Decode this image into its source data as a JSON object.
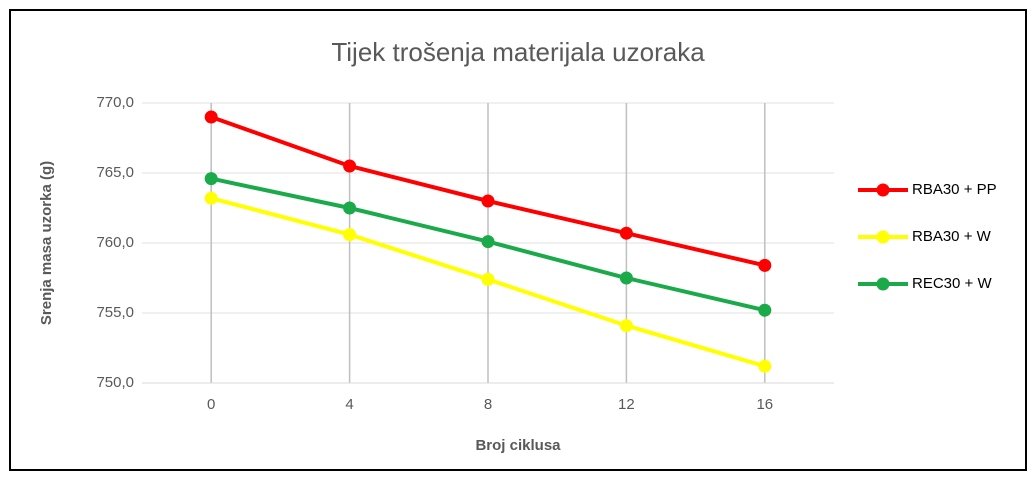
{
  "chart_data": {
    "type": "line",
    "title": "Tijek trošenja materijala uzoraka",
    "xlabel": "Broj ciklusa",
    "ylabel": "Srenja masa uzorka (g)",
    "x": [
      0,
      4,
      8,
      12,
      16
    ],
    "series": [
      {
        "name": "RBA30 + PP",
        "color": "#ff0000",
        "values": [
          769.0,
          765.5,
          763.0,
          760.7,
          758.4
        ]
      },
      {
        "name": "RBA30 + W",
        "color": "#ffff00",
        "values": [
          763.2,
          760.6,
          757.4,
          754.1,
          751.2
        ]
      },
      {
        "name": "REC30 + W",
        "color": "#1aaa4a",
        "values": [
          764.6,
          762.5,
          760.1,
          757.5,
          755.2
        ]
      }
    ],
    "xlim": [
      -2,
      18
    ],
    "xticks": [
      0,
      4,
      8,
      12,
      16
    ],
    "ylim": [
      750,
      770
    ],
    "yticks": [
      {
        "value": 750,
        "label": "750,0"
      },
      {
        "value": 755,
        "label": "755,0"
      },
      {
        "value": 760,
        "label": "760,0"
      },
      {
        "value": 765,
        "label": "765,0"
      },
      {
        "value": 770,
        "label": "770,0"
      }
    ],
    "grid": true,
    "legend": "right"
  }
}
